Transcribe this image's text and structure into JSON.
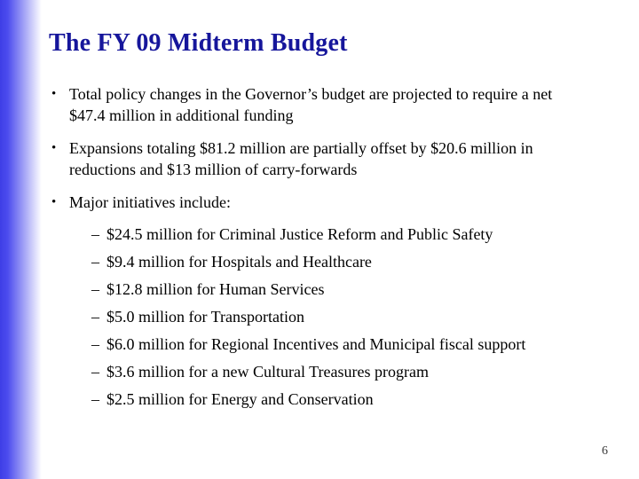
{
  "slide": {
    "title": "The FY 09 Midterm Budget",
    "bullet_glyph": "•",
    "dash_glyph": "–",
    "page_number": "6",
    "colors": {
      "title": "#16169b",
      "sidebar_blue": "#4b4bee",
      "body_text": "#000000",
      "page_number": "#3a3a3a"
    },
    "bullets": [
      {
        "text": "Total policy changes in the Governor’s budget are projected to require a net\n$47.4 million in additional funding"
      },
      {
        "text": "Expansions totaling $81.2 million are partially offset by $20.6 million in\nreductions and $13 million of carry-forwards"
      },
      {
        "text": "Major initiatives include:"
      }
    ],
    "initiatives": [
      {
        "text": "$24.5 million for Criminal Justice Reform and Public Safety"
      },
      {
        "text": "$9.4 million for Hospitals and Healthcare"
      },
      {
        "text": "$12.8 million for Human Services"
      },
      {
        "text": "$5.0 million for Transportation"
      },
      {
        "text": "$6.0 million for Regional Incentives and Municipal fiscal support"
      },
      {
        "text": "$3.6 million for a new Cultural Treasures program"
      },
      {
        "text": "$2.5 million for Energy and Conservation"
      }
    ]
  }
}
